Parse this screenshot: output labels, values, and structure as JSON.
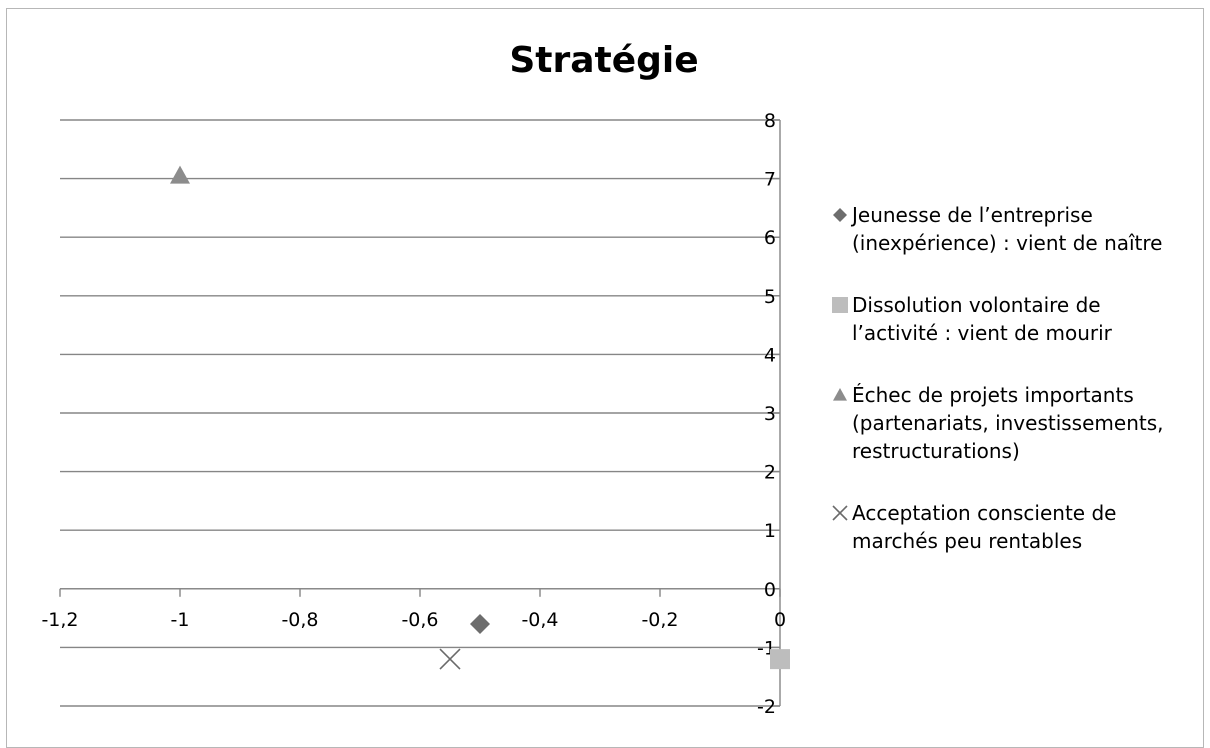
{
  "chart_data": {
    "type": "scatter",
    "title": "Stratégie",
    "xlabel": "",
    "ylabel": "",
    "xlim": [
      -1.2,
      0
    ],
    "ylim": [
      -2,
      8
    ],
    "x_ticks": [
      "-1,2",
      "-1",
      "-0,8",
      "-0,6",
      "-0,4",
      "-0,2",
      "0"
    ],
    "y_ticks": [
      "-2",
      "-1",
      "0",
      "1",
      "2",
      "3",
      "4",
      "5",
      "6",
      "7",
      "8"
    ],
    "grid": "horizontal",
    "legend_position": "right",
    "series": [
      {
        "name": "Jeunesse de l’entreprise (inexpérience) : vient de naître",
        "name_lines": [
          "Jeunesse de l’entreprise",
          "(inexpérience) : vient de naître"
        ],
        "marker": "diamond",
        "color": "#6d6d6d",
        "points": [
          {
            "x": -0.5,
            "y": -0.6
          }
        ]
      },
      {
        "name": "Dissolution volontaire de l’activité : vient de mourir",
        "name_lines": [
          "Dissolution volontaire de",
          "l’activité : vient de mourir"
        ],
        "marker": "square",
        "color": "#bdbdbd",
        "points": [
          {
            "x": 0.0,
            "y": -1.2
          }
        ]
      },
      {
        "name": "Échec de projets importants (partenariats, investissements, restructurations)",
        "name_lines": [
          "Échec de projets importants",
          "(partenariats, investissements,",
          "restructurations)"
        ],
        "marker": "triangle",
        "color": "#8c8c8c",
        "points": [
          {
            "x": -1.0,
            "y": 7.05
          }
        ]
      },
      {
        "name": "Acceptation consciente de marchés peu rentables",
        "name_lines": [
          "Acceptation consciente de",
          "marchés peu rentables"
        ],
        "marker": "x",
        "color": "#6a6a6a",
        "points": [
          {
            "x": -0.55,
            "y": -1.2
          }
        ]
      }
    ]
  }
}
